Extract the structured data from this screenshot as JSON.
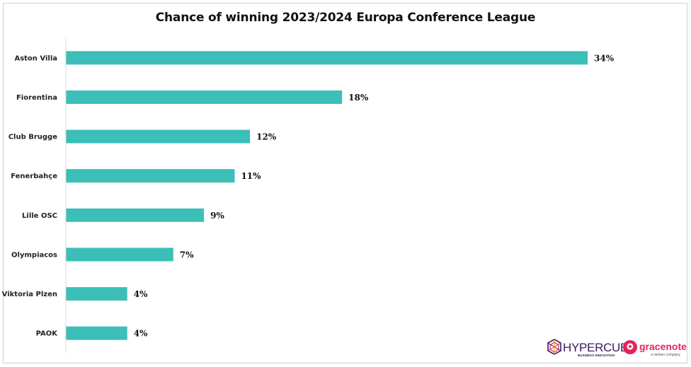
{
  "chart_data": {
    "type": "bar",
    "orientation": "horizontal",
    "title": "Chance of winning 2023/2024 Europa Conference League",
    "categories": [
      "Aston Villa",
      "Fiorentina",
      "Club Brugge",
      "Fenerbahçe",
      "Lille OSC",
      "Olympiacos",
      "Viktoria Plzen",
      "PAOK"
    ],
    "values": [
      34,
      18,
      12,
      11,
      9,
      7,
      4,
      4
    ],
    "value_labels": [
      "34%",
      "18%",
      "12%",
      "11%",
      "9%",
      "7%",
      "4%",
      "4%"
    ],
    "unit": "%",
    "grid": false,
    "legend": "none",
    "bar_color": "#3bbfb8"
  },
  "logos": {
    "hypercube": {
      "name": "HYPERCUBE",
      "tagline": "BUSINESS INNOVATION",
      "color": "#3a1b5e"
    },
    "gracenote": {
      "name": "gracenote",
      "tagline": "a nielsen company",
      "color": "#e6245a"
    }
  }
}
